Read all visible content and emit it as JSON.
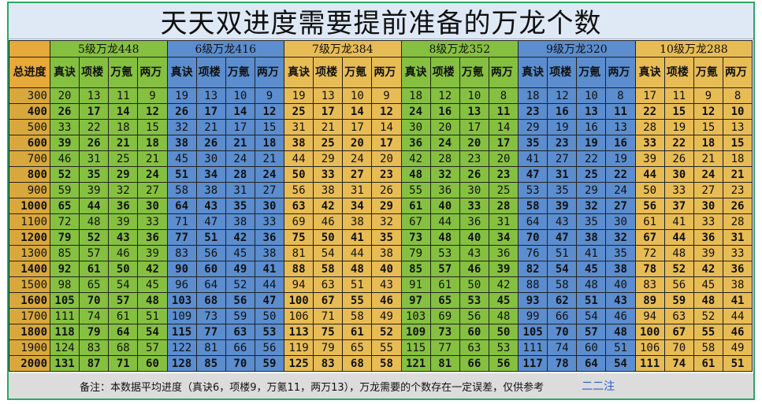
{
  "title": "天天双进度需要提前准备的万龙个数",
  "corner_label": "",
  "progress_header": "总进度",
  "groups": [
    {
      "name": "5级万龙448",
      "color": "#86c040",
      "headers": [
        "真诀",
        "项楼",
        "万氪",
        "两万"
      ]
    },
    {
      "name": "6级万龙416",
      "color": "#5b8dcf",
      "headers": [
        "真诀",
        "项楼",
        "万氪",
        "两万"
      ]
    },
    {
      "name": "7级万龙384",
      "color": "#e8bc55",
      "headers": [
        "真诀",
        "项楼",
        "万氪",
        "两万"
      ]
    },
    {
      "name": "8级万龙352",
      "color": "#86c040",
      "headers": [
        "真诀",
        "项楼",
        "万氪",
        "两万"
      ]
    },
    {
      "name": "9级万龙320",
      "color": "#5b8dcf",
      "headers": [
        "真诀",
        "项楼",
        "万氪",
        "两万"
      ]
    },
    {
      "name": "10级万龙288",
      "color": "#e8bc55",
      "headers": [
        "真诀",
        "项楼",
        "万氪",
        "两万"
      ]
    }
  ],
  "rows": [
    {
      "level": "300",
      "v": [
        20,
        13,
        11,
        9,
        19,
        13,
        10,
        9,
        19,
        13,
        10,
        9,
        18,
        12,
        10,
        8,
        18,
        12,
        10,
        8,
        17,
        11,
        9,
        8
      ]
    },
    {
      "level": "400",
      "v": [
        26,
        17,
        14,
        12,
        26,
        17,
        14,
        12,
        25,
        17,
        14,
        12,
        24,
        16,
        13,
        11,
        23,
        16,
        13,
        11,
        22,
        15,
        12,
        10
      ]
    },
    {
      "level": "500",
      "v": [
        33,
        22,
        18,
        15,
        32,
        21,
        17,
        15,
        31,
        21,
        17,
        14,
        30,
        20,
        17,
        14,
        29,
        19,
        16,
        13,
        28,
        19,
        15,
        13
      ]
    },
    {
      "level": "600",
      "v": [
        39,
        26,
        21,
        18,
        38,
        26,
        21,
        18,
        38,
        25,
        20,
        17,
        36,
        24,
        20,
        17,
        35,
        23,
        19,
        16,
        33,
        22,
        18,
        15
      ]
    },
    {
      "level": "700",
      "v": [
        46,
        31,
        25,
        21,
        45,
        30,
        24,
        21,
        44,
        29,
        24,
        20,
        42,
        28,
        23,
        20,
        41,
        27,
        22,
        19,
        39,
        26,
        21,
        18
      ]
    },
    {
      "level": "800",
      "v": [
        52,
        35,
        29,
        24,
        51,
        34,
        28,
        24,
        50,
        33,
        27,
        23,
        48,
        32,
        26,
        23,
        47,
        31,
        25,
        22,
        44,
        30,
        24,
        21
      ]
    },
    {
      "level": "900",
      "v": [
        59,
        39,
        32,
        27,
        58,
        38,
        31,
        27,
        56,
        38,
        31,
        26,
        55,
        36,
        30,
        25,
        53,
        35,
        29,
        24,
        50,
        33,
        27,
        23
      ]
    },
    {
      "level": "1000",
      "v": [
        65,
        44,
        36,
        30,
        64,
        43,
        35,
        30,
        63,
        42,
        34,
        29,
        61,
        40,
        33,
        28,
        58,
        39,
        32,
        27,
        56,
        37,
        30,
        26
      ]
    },
    {
      "level": "1100",
      "v": [
        72,
        48,
        39,
        33,
        71,
        47,
        38,
        33,
        69,
        46,
        38,
        32,
        67,
        44,
        36,
        31,
        64,
        43,
        35,
        30,
        61,
        41,
        33,
        28
      ]
    },
    {
      "level": "1200",
      "v": [
        79,
        52,
        43,
        36,
        77,
        51,
        42,
        36,
        75,
        50,
        41,
        35,
        73,
        48,
        40,
        34,
        70,
        47,
        38,
        32,
        67,
        44,
        36,
        31
      ]
    },
    {
      "level": "1300",
      "v": [
        85,
        57,
        46,
        39,
        83,
        56,
        45,
        38,
        81,
        54,
        44,
        38,
        79,
        53,
        43,
        36,
        76,
        51,
        41,
        35,
        72,
        48,
        39,
        33
      ]
    },
    {
      "level": "1400",
      "v": [
        92,
        61,
        50,
        42,
        90,
        60,
        49,
        41,
        88,
        58,
        48,
        40,
        85,
        57,
        46,
        39,
        82,
        54,
        45,
        38,
        78,
        52,
        42,
        36
      ]
    },
    {
      "level": "1500",
      "v": [
        98,
        65,
        54,
        45,
        96,
        64,
        52,
        44,
        94,
        63,
        51,
        43,
        91,
        61,
        50,
        42,
        88,
        58,
        48,
        40,
        83,
        56,
        45,
        38
      ]
    },
    {
      "level": "1600",
      "v": [
        105,
        70,
        57,
        48,
        103,
        68,
        56,
        47,
        100,
        67,
        55,
        46,
        97,
        65,
        53,
        45,
        93,
        62,
        51,
        43,
        89,
        59,
        48,
        41
      ]
    },
    {
      "level": "1700",
      "v": [
        111,
        74,
        61,
        51,
        109,
        73,
        59,
        50,
        106,
        71,
        58,
        49,
        103,
        69,
        56,
        48,
        99,
        66,
        54,
        46,
        94,
        63,
        52,
        44
      ]
    },
    {
      "level": "1800",
      "v": [
        118,
        79,
        64,
        54,
        115,
        77,
        63,
        53,
        113,
        75,
        61,
        52,
        109,
        73,
        60,
        50,
        105,
        70,
        57,
        48,
        100,
        67,
        55,
        46
      ]
    },
    {
      "level": "1900",
      "v": [
        124,
        83,
        68,
        57,
        122,
        81,
        66,
        56,
        119,
        79,
        65,
        55,
        115,
        77,
        63,
        53,
        111,
        74,
        60,
        51,
        106,
        70,
        58,
        49
      ]
    },
    {
      "level": "2000",
      "v": [
        131,
        87,
        71,
        60,
        128,
        85,
        70,
        59,
        125,
        83,
        68,
        58,
        121,
        81,
        66,
        56,
        117,
        78,
        64,
        54,
        111,
        74,
        61,
        51
      ]
    }
  ],
  "row_colors": {
    "odd_level": "#d8a93e",
    "even_level": "#d8a93e"
  },
  "note": "备注：本数据平均进度（真诀6，项楼9，万氪11，两万13），万龙需要的个数存在一定误差，仅供参考",
  "author": "二二注"
}
